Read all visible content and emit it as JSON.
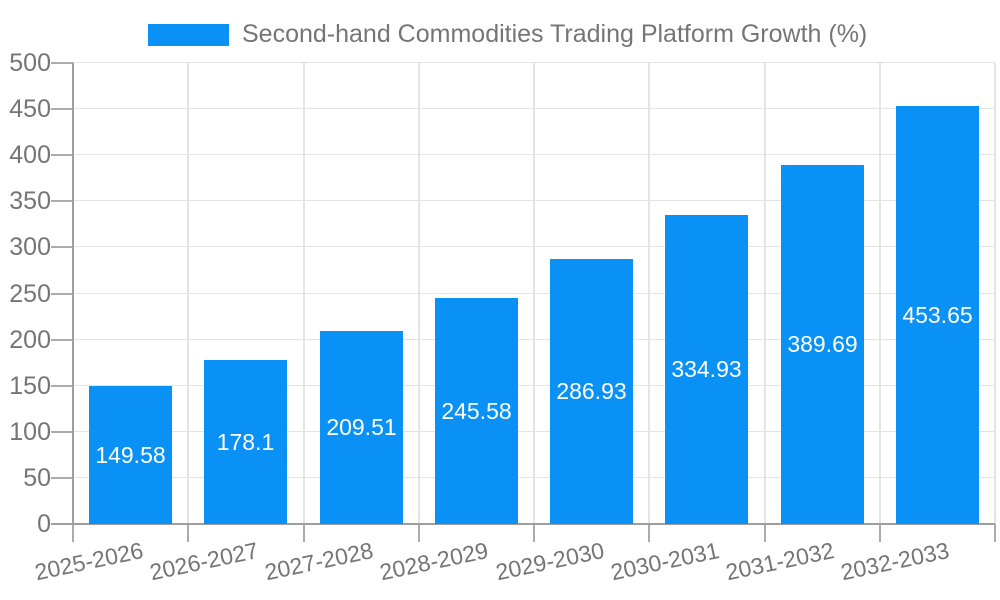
{
  "legend": {
    "series_label": "Second-hand Commodities Trading Platform Growth (%)"
  },
  "colors": {
    "bar": "#0991f5",
    "axis_text": "#757575",
    "bar_value_text": "#ffffff",
    "grid_line": "#e4e4e4",
    "axis_line": "#9e9e9e",
    "tick_mark": "#ababab",
    "background": "#ffffff"
  },
  "chart_data": {
    "type": "bar",
    "title": "Second-hand Commodities Trading Platform Growth (%)",
    "categories": [
      "2025-2026",
      "2026-2027",
      "2027-2028",
      "2028-2029",
      "2029-2030",
      "2030-2031",
      "2031-2032",
      "2032-2033"
    ],
    "values": [
      149.58,
      178.1,
      209.51,
      245.58,
      286.93,
      334.93,
      389.69,
      453.65
    ],
    "value_labels": [
      "149.58",
      "178.1",
      "209.51",
      "245.58",
      "286.93",
      "334.93",
      "389.69",
      "453.65"
    ],
    "xlabel": "",
    "ylabel": "",
    "ylim": [
      0,
      500
    ],
    "yticks": [
      0,
      50,
      100,
      150,
      200,
      250,
      300,
      350,
      400,
      450,
      500
    ],
    "grid": true,
    "legend_position": "top-center",
    "value_label_position": "inside-center",
    "x_tick_label_rotation_deg": -12
  }
}
